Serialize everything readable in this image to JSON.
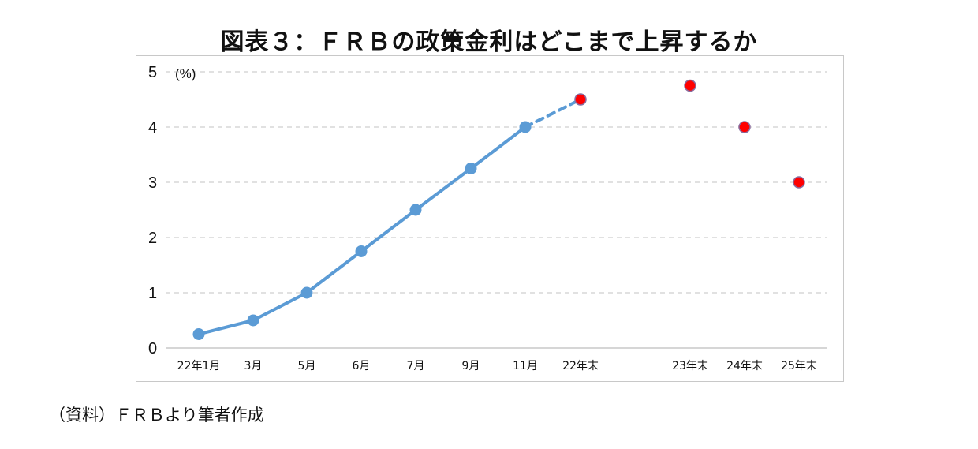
{
  "title": "図表３：ＦＲＢの政策金利はどこまで上昇するか",
  "source": "（資料）ＦＲＢより筆者作成",
  "chart_data": {
    "type": "line",
    "title": "図表３：ＦＲＢの政策金利はどこまで上昇するか",
    "unit_label": "(%)",
    "ylim": [
      0,
      5
    ],
    "yticks": [
      "0",
      "1",
      "2",
      "3",
      "4",
      "5"
    ],
    "grid": true,
    "categories": [
      "22年1月",
      "3月",
      "5月",
      "6月",
      "7月",
      "9月",
      "11月",
      "22年末",
      "23年末",
      "24年末",
      "25年末"
    ],
    "series": [
      {
        "values": [
          0.25,
          0.5,
          1.0,
          1.75,
          2.5,
          3.25,
          4.0,
          null,
          null,
          null,
          null
        ],
        "color": "#5b9bd5",
        "style": "solid"
      },
      {
        "values": [
          null,
          null,
          null,
          null,
          null,
          null,
          4.0,
          4.5,
          null,
          null,
          null
        ],
        "color": "#5b9bd5",
        "style": "dashed"
      },
      {
        "values": [
          null,
          null,
          null,
          null,
          null,
          null,
          null,
          4.5,
          4.75,
          4.0,
          3.0
        ],
        "color": "#ff0000",
        "style": "markers"
      }
    ]
  }
}
